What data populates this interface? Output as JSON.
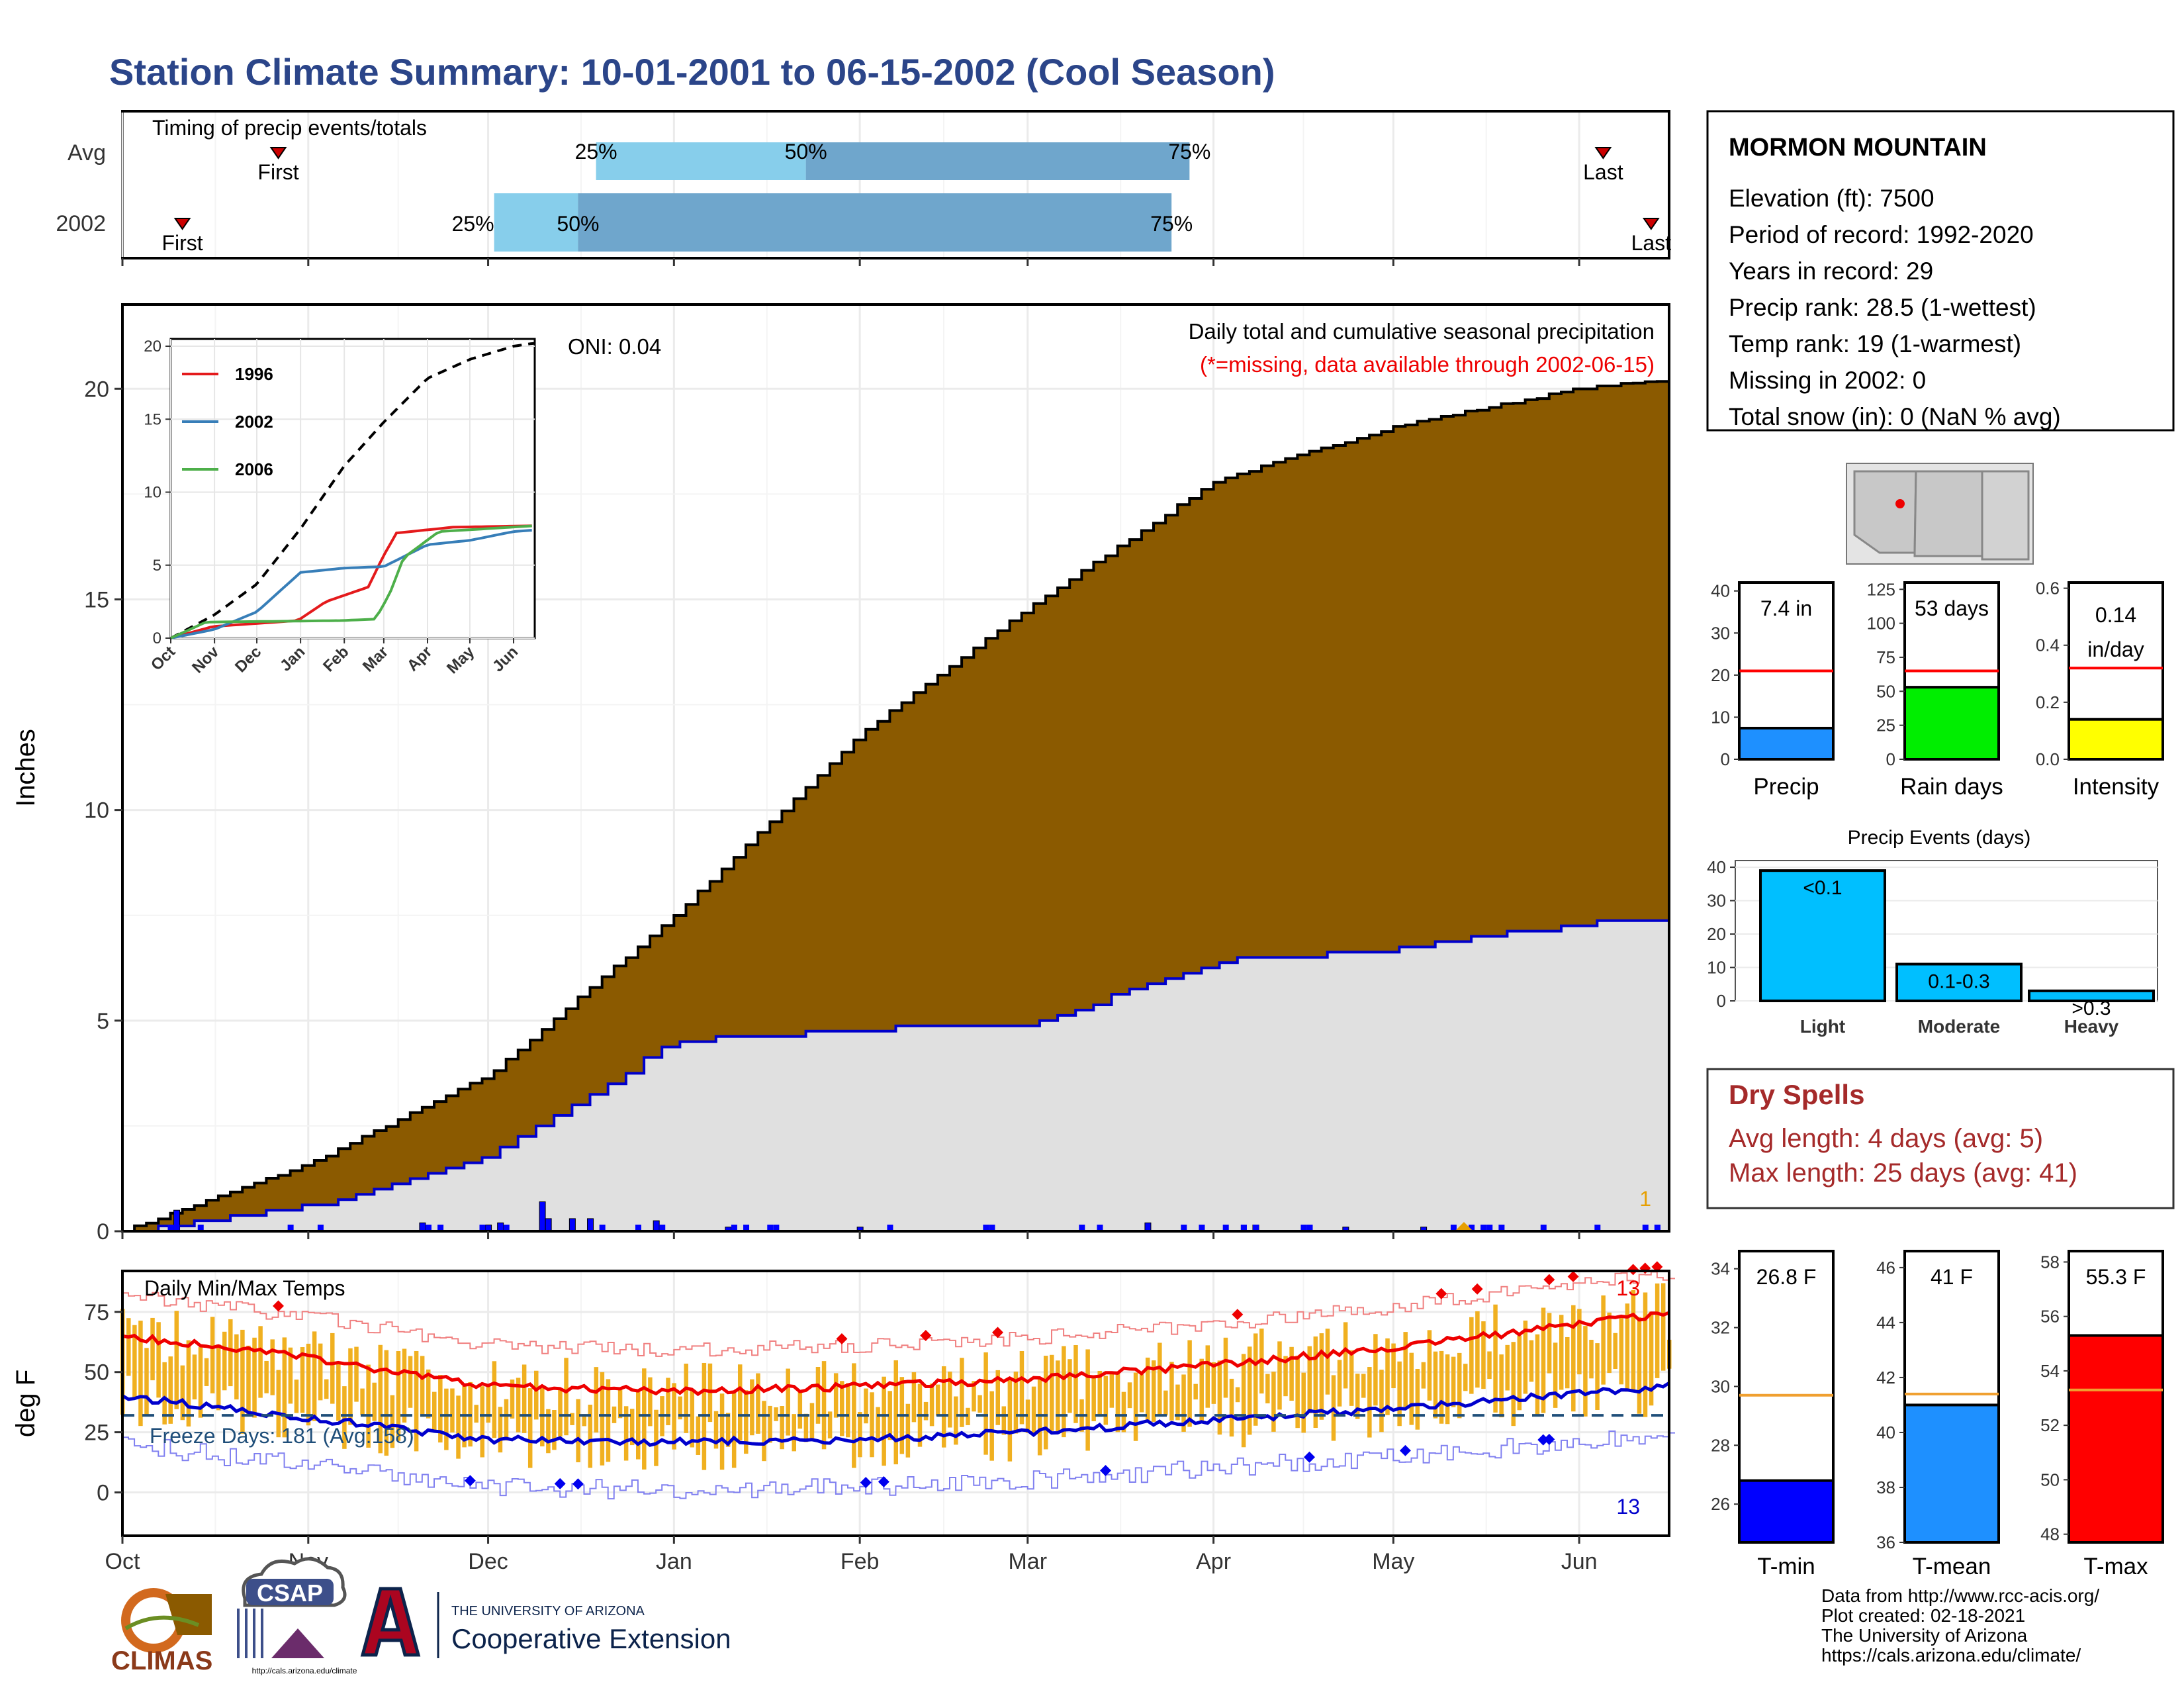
{
  "title": "Station Climate Summary: 10-01-2001 to 06-15-2002 (Cool Season)",
  "months": [
    "Oct",
    "Nov",
    "Dec",
    "Jan",
    "Feb",
    "Mar",
    "Apr",
    "May",
    "Jun"
  ],
  "timing": {
    "label": "Timing of precip events/totals",
    "rows": [
      "Avg",
      "2002"
    ],
    "first_label": "First",
    "last_label": "Last",
    "p25": "25%",
    "p50": "50%",
    "p75": "75%",
    "avg": {
      "first_day": 26,
      "p25_day": 79,
      "p50_day": 114,
      "p75_day": 178,
      "last_day": 247
    },
    "y2002": {
      "first_day": 10,
      "p25_day": 62,
      "p50_day": 76,
      "p75_day": 175,
      "last_day": 255
    },
    "colors": {
      "light": "#87CEEB",
      "dark": "#6FA6CC",
      "marker": "#CC0000"
    }
  },
  "precip_panel": {
    "ylabel": "Inches",
    "yticks": [
      0,
      5,
      10,
      15,
      20
    ],
    "ylim": [
      0,
      22
    ],
    "annotation": "Daily total and cumulative seasonal precipitation",
    "missing_note": "(*=missing, data available through 2002-06-15)",
    "oni": "ONI: 0.04",
    "corner_value": "1",
    "colors": {
      "avg_fill": "#8B5A00",
      "obs_fill": "#E0E0E0",
      "obs_line": "#0000CC",
      "daily_bar": "#0000FF"
    }
  },
  "inset": {
    "yticks": [
      0,
      5,
      10,
      15,
      20
    ],
    "xticks": [
      "Oct",
      "Nov",
      "Dec",
      "Jan",
      "Feb",
      "Mar",
      "Apr",
      "May",
      "Jun"
    ],
    "legend": [
      {
        "name": "1996",
        "color": "#E41A1C"
      },
      {
        "name": "2002",
        "color": "#377EB8"
      },
      {
        "name": "2006",
        "color": "#4DAF4A"
      }
    ]
  },
  "temp_panel": {
    "ylabel": "deg F",
    "label": "Daily Min/Max Temps",
    "yticks": [
      0,
      25,
      50,
      75
    ],
    "ylim": [
      -18,
      92
    ],
    "freeze": "Freeze Days: 181 (Avg:158)",
    "top_count": "13",
    "bottom_count": "13",
    "colors": {
      "bar": "#F0B020",
      "avg_max": "#EE0000",
      "avg_min": "#0000CC",
      "freeze_line": "#1F4E79"
    }
  },
  "station": {
    "name": "MORMON MOUNTAIN",
    "lines": [
      "Elevation (ft): 7500",
      "Period of record: 1992-2020",
      "Years in record: 29",
      "Precip rank: 28.5 (1-wettest)",
      "Temp rank: 19 (1-warmest)",
      "Missing in 2002: 0",
      "Total snow (in): 0 (NaN % avg)"
    ]
  },
  "stat_bars": [
    {
      "label": "Precip",
      "value_text": "7.4 in",
      "value": 7.4,
      "avg": 21,
      "ymax": 42,
      "yticks": [
        0,
        10,
        20,
        30,
        40
      ],
      "color": "#1E90FF"
    },
    {
      "label": "Rain days",
      "value_text": "53 days",
      "value": 53,
      "avg": 65,
      "ymax": 130,
      "yticks": [
        0,
        25,
        50,
        75,
        100,
        125
      ],
      "color": "#00EE00"
    },
    {
      "label": "Intensity",
      "value_text": "0.14 in/day",
      "value": 0.14,
      "avg": 0.32,
      "ymax": 0.62,
      "yticks": [
        0.0,
        0.2,
        0.4,
        0.6
      ],
      "color": "#FFFF00"
    }
  ],
  "precip_events": {
    "title": "Precip Events (days)",
    "yticks": [
      0,
      10,
      20,
      30,
      40
    ],
    "ymax": 42,
    "bars": [
      {
        "label": "Light",
        "value": 39,
        "text": "<0.1"
      },
      {
        "label": "Moderate",
        "value": 11,
        "text": "0.1-0.3"
      },
      {
        "label": "Heavy",
        "value": 3,
        "text": ">0.3"
      }
    ],
    "color": "#00BFFF"
  },
  "dry_spells": {
    "title": "Dry Spells",
    "avg_line": "Avg length: 4 days (avg: 5)",
    "max_line": "Max length: 25 days (avg: 41)"
  },
  "temp_bars": [
    {
      "label": "T-min",
      "value_text": "26.8 F",
      "value": 26.8,
      "avg": 29.7,
      "ymin": 24.7,
      "ymax": 34.6,
      "yticks": [
        26,
        28,
        30,
        32,
        34
      ],
      "color": "#0000FF"
    },
    {
      "label": "T-mean",
      "value_text": "41 F",
      "value": 41.0,
      "avg": 41.4,
      "ymin": 36.0,
      "ymax": 46.6,
      "yticks": [
        36,
        38,
        40,
        42,
        44,
        46
      ],
      "color": "#1E90FF"
    },
    {
      "label": "T-max",
      "value_text": "55.3 F",
      "value": 55.3,
      "avg": 53.3,
      "ymin": 47.7,
      "ymax": 58.4,
      "yticks": [
        48,
        50,
        52,
        54,
        56,
        58
      ],
      "color": "#FF0000"
    }
  ],
  "footer": {
    "lines": [
      "Data from http://www.rcc-acis.org/",
      "Plot created: 02-18-2021",
      "The University of Arizona",
      "https://cals.arizona.edu/climate/"
    ],
    "logo_climas": "CLIMAS",
    "logo_csap": "CSAP",
    "logo_csap_url": "http://cals.arizona.edu/climate",
    "ua_small": "THE UNIVERSITY OF ARIZONA",
    "ua_big": "Cooperative Extension"
  },
  "chart_data": {
    "type": "area",
    "title": "Station Climate Summary: 10-01-2001 to 06-15-2002 (Cool Season)",
    "ylabel": "Inches",
    "ylim": [
      0,
      22
    ],
    "x_dates": [
      "2001-10-01",
      "2001-11-01",
      "2001-12-01",
      "2002-01-01",
      "2002-02-01",
      "2002-03-01",
      "2002-04-01",
      "2002-05-01",
      "2002-06-01",
      "2002-06-15"
    ],
    "series": [
      {
        "values": [
          0.0,
          1.6,
          3.7,
          7.5,
          11.8,
          14.8,
          17.8,
          19.1,
          20.0,
          20.2
        ]
      },
      {
        "values": [
          0.0,
          0.6,
          1.8,
          4.5,
          4.8,
          4.9,
          6.4,
          6.7,
          7.3,
          7.4
        ]
      }
    ],
    "daily_precip_events": [
      {
        "date": "2001-10-10",
        "value": 0.5
      },
      {
        "date": "2001-11-20",
        "value": 0.2
      },
      {
        "date": "2001-12-01",
        "value": 0.15
      },
      {
        "date": "2001-12-03",
        "value": 0.2
      },
      {
        "date": "2001-12-10",
        "value": 0.7
      },
      {
        "date": "2001-12-11",
        "value": 0.3
      },
      {
        "date": "2001-12-15",
        "value": 0.3
      },
      {
        "date": "2001-12-18",
        "value": 0.3
      },
      {
        "date": "2001-12-29",
        "value": 0.25
      },
      {
        "date": "2002-01-10",
        "value": 0.1
      },
      {
        "date": "2002-02-01",
        "value": 0.1
      },
      {
        "date": "2002-03-21",
        "value": 0.2
      },
      {
        "date": "2002-04-08",
        "value": 0.15
      },
      {
        "date": "2002-04-23",
        "value": 0.1
      },
      {
        "date": "2002-05-06",
        "value": 0.1
      }
    ],
    "temperature_avg_max": [
      {
        "date": "2001-10-01",
        "value": 65
      },
      {
        "date": "2001-11-01",
        "value": 56
      },
      {
        "date": "2001-12-01",
        "value": 44
      },
      {
        "date": "2002-01-01",
        "value": 42
      },
      {
        "date": "2002-02-01",
        "value": 44
      },
      {
        "date": "2002-03-01",
        "value": 47
      },
      {
        "date": "2002-04-01",
        "value": 53
      },
      {
        "date": "2002-05-01",
        "value": 60
      },
      {
        "date": "2002-06-01",
        "value": 70
      },
      {
        "date": "2002-06-15",
        "value": 74
      }
    ],
    "temperature_avg_min": [
      {
        "date": "2001-10-01",
        "value": 40
      },
      {
        "date": "2001-11-01",
        "value": 31
      },
      {
        "date": "2001-12-01",
        "value": 22
      },
      {
        "date": "2002-01-01",
        "value": 21
      },
      {
        "date": "2002-02-01",
        "value": 22
      },
      {
        "date": "2002-03-01",
        "value": 25
      },
      {
        "date": "2002-04-01",
        "value": 30
      },
      {
        "date": "2002-05-01",
        "value": 35
      },
      {
        "date": "2002-06-01",
        "value": 41
      },
      {
        "date": "2002-06-15",
        "value": 44
      }
    ]
  }
}
